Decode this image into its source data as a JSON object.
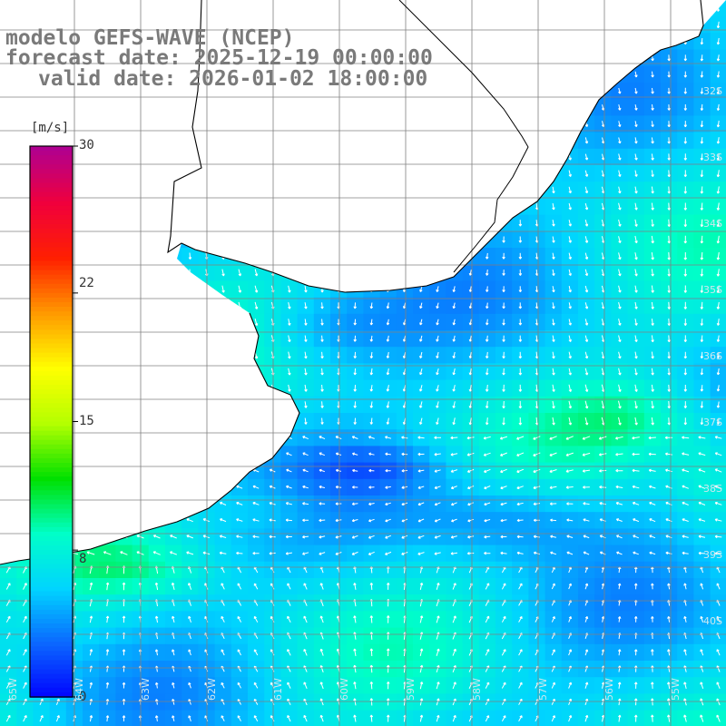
{
  "title": {
    "line1": "modelo GEFS-WAVE (NCEP)",
    "line2": "forecast date: 2025-12-19 00:00:00",
    "line3": "valid date: 2026-01-02 18:00:00"
  },
  "colorbar": {
    "unit": "[m/s]",
    "min": 0,
    "max": 30,
    "ticks": [
      "30",
      "22",
      "15",
      "8",
      "0"
    ],
    "tick_values": [
      30,
      22,
      15,
      8,
      0
    ],
    "colors": [
      "#0000ff",
      "#0b66ff",
      "#00d4ff",
      "#00ffc8",
      "#00e000",
      "#b4ff00",
      "#ffff00",
      "#ff9a00",
      "#ff2000",
      "#f0003c",
      "#b00090"
    ]
  },
  "map": {
    "land_color": "#ffffff",
    "grid_color": "#808080",
    "coast_color": "#000000",
    "lat_labels": [
      "32S",
      "33S",
      "34S",
      "35S",
      "36S",
      "37S",
      "38S",
      "39S",
      "40S"
    ],
    "lon_labels": [
      "65W",
      "64W",
      "63W",
      "62W",
      "61W",
      "60W",
      "59W",
      "58W",
      "57W",
      "56W",
      "55W"
    ]
  }
}
